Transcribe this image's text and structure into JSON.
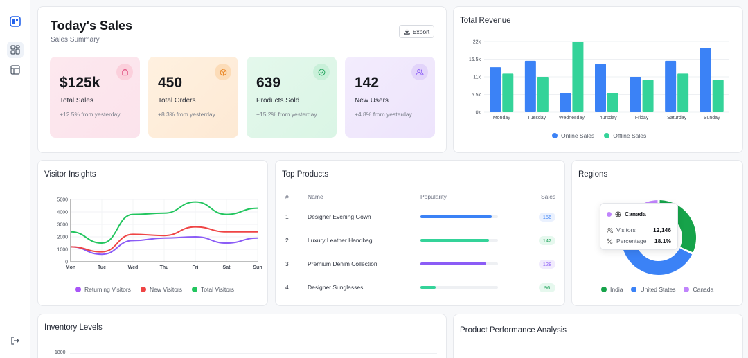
{
  "colors": {
    "blue": "#3b82f6",
    "green": "#34d399",
    "purple": "#8b5cf6",
    "red": "#ef4444",
    "totalGreen": "#22c55e",
    "darkGreen": "#16a34a",
    "lavender": "#c084fc"
  },
  "sidebar": {
    "icons": [
      "app-logo-icon",
      "dashboard-icon",
      "layout-icon",
      "logout-icon"
    ]
  },
  "sales": {
    "title": "Today's Sales",
    "subtitle": "Sales Summary",
    "export_label": "Export",
    "stats": [
      {
        "value": "$125k",
        "label": "Total Sales",
        "change": "+12.5% from yesterday",
        "icon": "shopping-bag-icon"
      },
      {
        "value": "450",
        "label": "Total Orders",
        "change": "+8.3% from yesterday",
        "icon": "package-icon"
      },
      {
        "value": "639",
        "label": "Products Sold",
        "change": "+15.2% from yesterday",
        "icon": "check-circle-icon"
      },
      {
        "value": "142",
        "label": "New Users",
        "change": "+4.8% from yesterday",
        "icon": "users-icon"
      }
    ]
  },
  "revenue": {
    "title": "Total Revenue",
    "chart_data": {
      "type": "bar",
      "categories": [
        "Monday",
        "Tuesday",
        "Wednesday",
        "Thursday",
        "Friday",
        "Saturday",
        "Sunday"
      ],
      "y_ticks": [
        "0k",
        "5.5k",
        "11k",
        "16.5k",
        "22k"
      ],
      "ylim": [
        0,
        22000
      ],
      "series": [
        {
          "name": "Online Sales",
          "values": [
            14000,
            16000,
            6000,
            15000,
            11000,
            16000,
            20000
          ]
        },
        {
          "name": "Offline Sales",
          "values": [
            12000,
            11000,
            22000,
            6000,
            10000,
            12000,
            10000
          ]
        }
      ],
      "legend": "bottom"
    }
  },
  "visitors": {
    "title": "Visitor Insights",
    "chart_data": {
      "type": "line",
      "categories": [
        "Mon",
        "Tue",
        "Wed",
        "Thu",
        "Fri",
        "Sat",
        "Sun"
      ],
      "y_ticks": [
        "0",
        "1000",
        "2000",
        "3000",
        "4000",
        "5000"
      ],
      "ylim": [
        0,
        5000
      ],
      "series": [
        {
          "name": "Returning Visitors",
          "values": [
            1200,
            600,
            1700,
            1900,
            2000,
            1500,
            1900
          ]
        },
        {
          "name": "New Visitors",
          "values": [
            1200,
            800,
            2200,
            2100,
            2800,
            2400,
            2400
          ]
        },
        {
          "name": "Total Visitors",
          "values": [
            2400,
            1500,
            3800,
            3900,
            4800,
            3800,
            4300
          ]
        }
      ],
      "legend": "bottom"
    }
  },
  "products": {
    "title": "Top Products",
    "headers": {
      "num": "#",
      "name": "Name",
      "popularity": "Popularity",
      "sales": "Sales"
    },
    "rows": [
      {
        "num": "1",
        "name": "Designer Evening Gown",
        "popularity": 0.92,
        "sales": "156"
      },
      {
        "num": "2",
        "name": "Luxury Leather Handbag",
        "popularity": 0.88,
        "sales": "142"
      },
      {
        "num": "3",
        "name": "Premium Denim Collection",
        "popularity": 0.85,
        "sales": "128"
      },
      {
        "num": "4",
        "name": "Designer Sunglasses",
        "popularity": 0.2,
        "sales": "96"
      }
    ]
  },
  "regions": {
    "title": "Regions",
    "chart_data": {
      "type": "pie",
      "slices": [
        {
          "name": "India",
          "value": 0.32
        },
        {
          "name": "United States",
          "value": 0.5
        },
        {
          "name": "Canada",
          "value": 0.181
        }
      ],
      "legend": "bottom"
    },
    "tooltip": {
      "region": "Canada",
      "visitors_label": "Visitors",
      "visitors_value": "12,146",
      "percentage_label": "Percentage",
      "percentage_value": "18.1%"
    }
  },
  "inventory": {
    "title": "Inventory Levels",
    "first_tick": "1800"
  },
  "performance": {
    "title": "Product Performance Analysis"
  }
}
